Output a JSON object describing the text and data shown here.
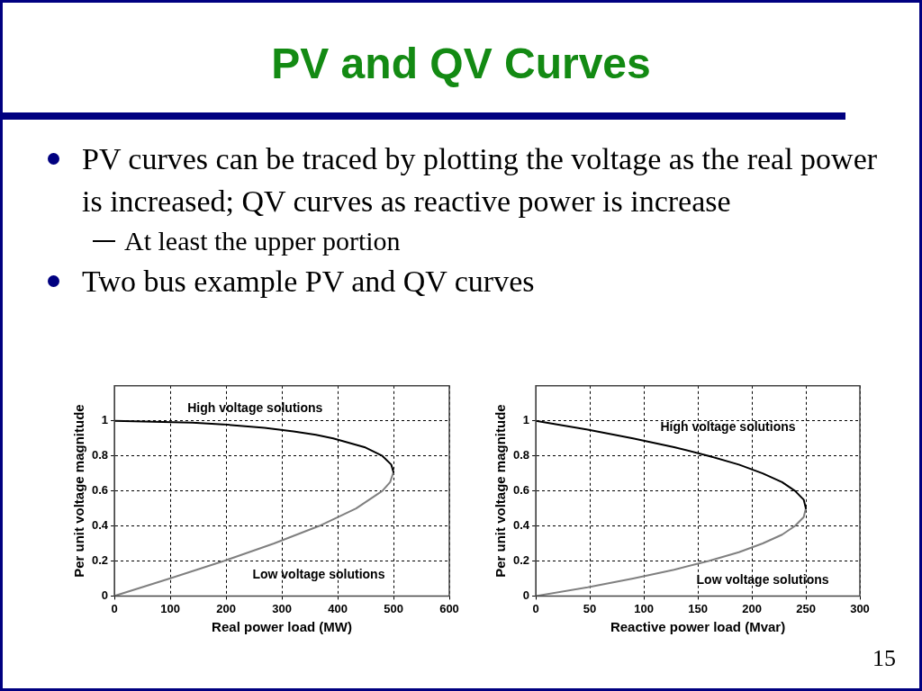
{
  "chart_data": [
    {
      "type": "line",
      "title": "PV and QV Curves",
      "xlabel": "Real power load (MW)",
      "ylabel": "Per unit voltage magnitude",
      "xlim": [
        0,
        600
      ],
      "xticks": [
        0,
        100,
        200,
        300,
        400,
        500,
        600
      ],
      "ylim": [
        0,
        1.2
      ],
      "yticks": [
        0,
        0.2,
        0.4,
        0.6,
        0.8,
        1
      ],
      "grid": true,
      "marker": "none",
      "line_style": "solid",
      "annotations": [
        "PV curves can be traced by plotting the voltage as the real power is increased; QV curves as reactive power is increase",
        "At least the upper portion",
        "Two bus example PV and QV curves",
        "High voltage solutions",
        "Low voltage solutions"
      ],
      "series": [
        {
          "color": "#000000",
          "x": [
            0,
            140,
            195,
            269,
            321,
            361,
            392,
            448,
            480,
            496,
            500
          ],
          "values": [
            1,
            0.99,
            0.98,
            0.96,
            0.94,
            0.92,
            0.9,
            0.85,
            0.8,
            0.75,
            0.707
          ]
        },
        {
          "color": "#808080",
          "x": [
            500,
            494,
            480,
            433,
            367,
            286,
            196,
            99,
            0
          ],
          "values": [
            0.707,
            0.65,
            0.6,
            0.5,
            0.4,
            0.3,
            0.2,
            0.1,
            0
          ]
        }
      ]
    },
    {
      "type": "line",
      "xlabel": "Reactive power load (Mvar)",
      "ylabel": "Per unit voltage magnitude",
      "xlim": [
        0,
        300
      ],
      "xticks": [
        0,
        50,
        100,
        150,
        200,
        250,
        300
      ],
      "ylim": [
        0,
        1.2
      ],
      "yticks": [
        0,
        0.2,
        0.4,
        0.6,
        0.8,
        1
      ],
      "grid": true,
      "marker": "none",
      "line_style": "solid",
      "annotations": [
        "High voltage solutions",
        "Low voltage solutions",
        "15"
      ],
      "series": [
        {
          "color": "#000000",
          "x": [
            0,
            48,
            90,
            128,
            160,
            188,
            210,
            228,
            240,
            248,
            250
          ],
          "values": [
            1,
            0.95,
            0.9,
            0.85,
            0.8,
            0.75,
            0.7,
            0.65,
            0.6,
            0.55,
            0.5
          ]
        },
        {
          "color": "#808080",
          "x": [
            250,
            248,
            240,
            228,
            210,
            188,
            160,
            128,
            90,
            48,
            0
          ],
          "values": [
            0.5,
            0.45,
            0.4,
            0.35,
            0.3,
            0.25,
            0.2,
            0.15,
            0.1,
            0.05,
            0
          ]
        }
      ]
    }
  ]
}
